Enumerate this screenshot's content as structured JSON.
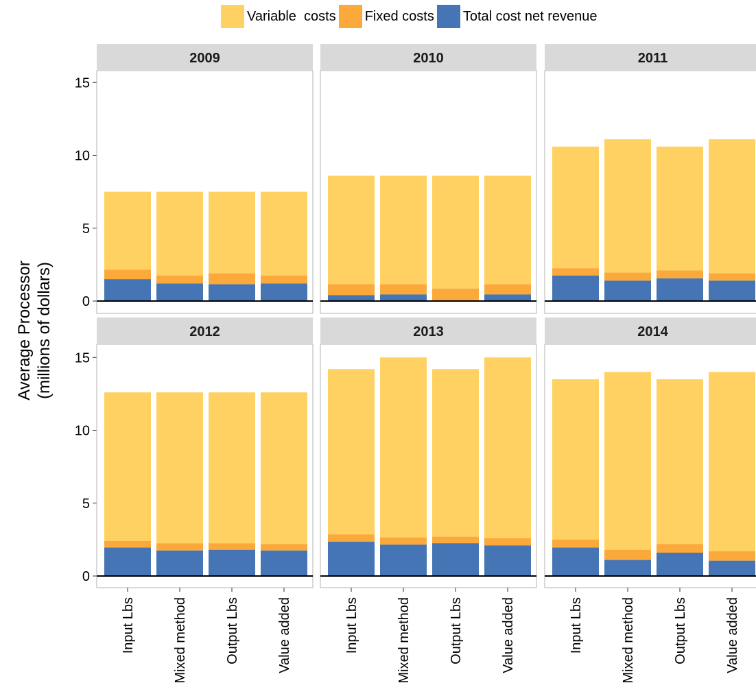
{
  "chart_data": {
    "type": "bar",
    "stacked": true,
    "facet_titles": [
      "2009",
      "2010",
      "2011",
      "2012",
      "2013",
      "2014"
    ],
    "categories": [
      "Input Lbs",
      "Mixed method",
      "Output Lbs",
      "Value added"
    ],
    "ylabel_line1": "Average Processor",
    "ylabel_line2": "(millions of dollars)",
    "xlabel": "",
    "ylim": [
      0,
      16
    ],
    "yticks": [
      0,
      5,
      10,
      15
    ],
    "legend_position": "top",
    "grid": false,
    "series": [
      {
        "name": "Variable  costs",
        "color": "#FED162"
      },
      {
        "name": "Fixed costs",
        "color": "#FBA93A"
      },
      {
        "name": "Total cost net revenue",
        "color": "#4575B4"
      }
    ],
    "panels": [
      {
        "title": "2009",
        "net_revenue": [
          1.5,
          1.2,
          1.15,
          1.2
        ],
        "fixed_costs": [
          0.65,
          0.55,
          0.75,
          0.55
        ],
        "variable_costs": [
          5.35,
          5.75,
          5.6,
          5.75
        ]
      },
      {
        "title": "2010",
        "net_revenue": [
          0.4,
          0.45,
          0.0,
          0.45
        ],
        "fixed_costs": [
          0.75,
          0.7,
          0.85,
          0.7
        ],
        "variable_costs": [
          7.45,
          7.45,
          7.75,
          7.45
        ]
      },
      {
        "title": "2011",
        "net_revenue": [
          1.75,
          1.4,
          1.55,
          1.4
        ],
        "fixed_costs": [
          0.5,
          0.55,
          0.55,
          0.5
        ],
        "variable_costs": [
          8.35,
          9.15,
          8.5,
          9.2
        ]
      },
      {
        "title": "2012",
        "net_revenue": [
          1.95,
          1.75,
          1.8,
          1.75
        ],
        "fixed_costs": [
          0.45,
          0.5,
          0.45,
          0.45
        ],
        "variable_costs": [
          10.2,
          10.35,
          10.35,
          10.4
        ]
      },
      {
        "title": "2013",
        "net_revenue": [
          2.35,
          2.15,
          2.25,
          2.1
        ],
        "fixed_costs": [
          0.5,
          0.5,
          0.45,
          0.5
        ],
        "variable_costs": [
          11.35,
          12.35,
          11.5,
          12.4
        ]
      },
      {
        "title": "2014",
        "net_revenue": [
          1.95,
          1.1,
          1.6,
          1.05
        ],
        "fixed_costs": [
          0.55,
          0.7,
          0.6,
          0.65
        ],
        "variable_costs": [
          11.0,
          12.2,
          11.3,
          12.3
        ]
      }
    ]
  }
}
